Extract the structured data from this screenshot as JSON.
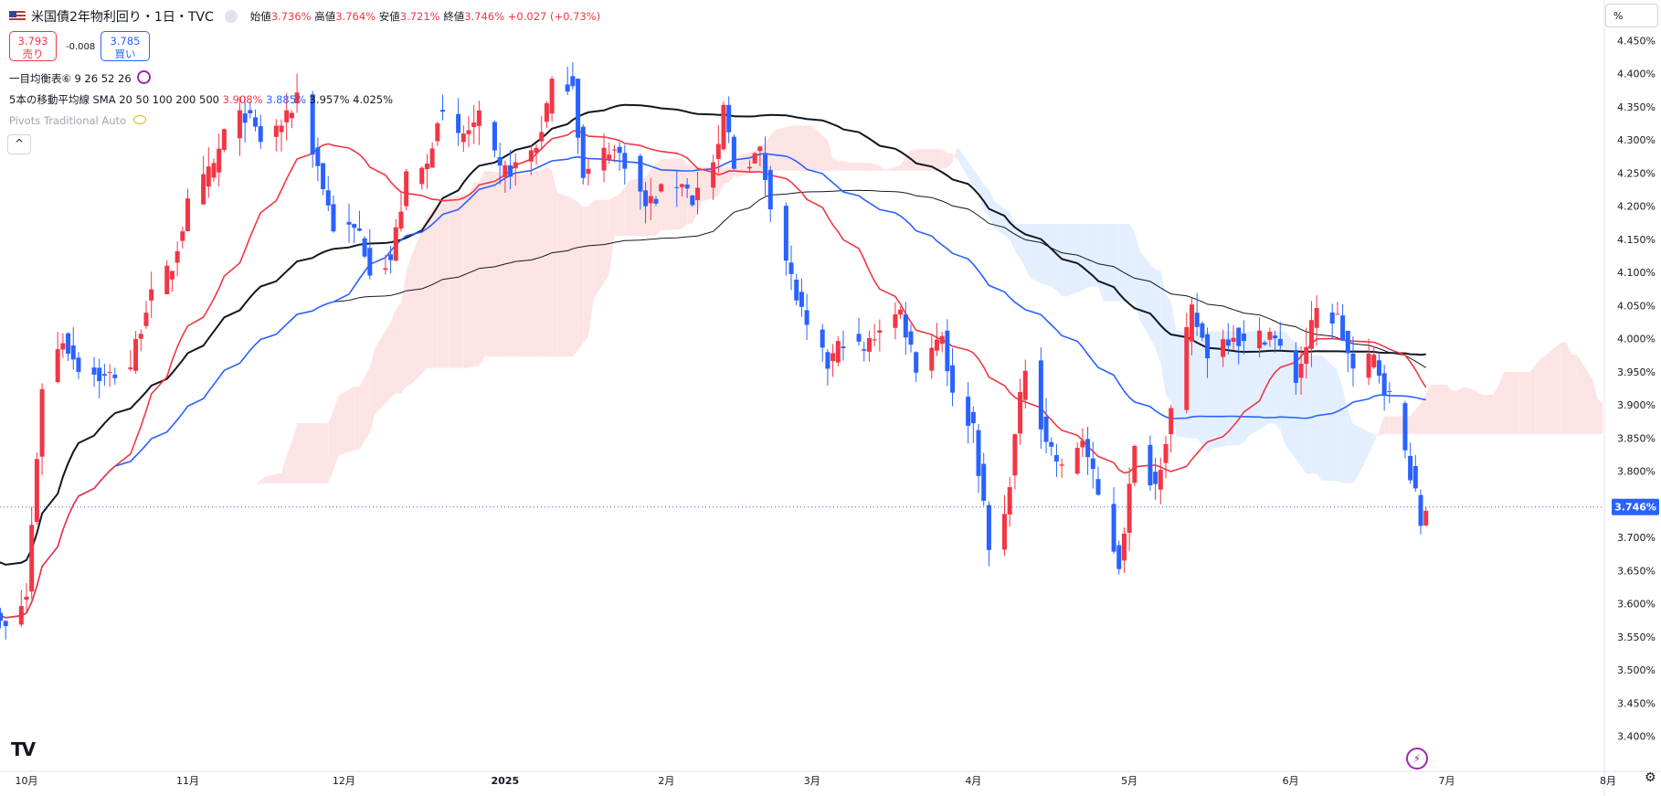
{
  "header": {
    "symbol": "米国債2年物利回り・1日・TVC",
    "open_label": "始値",
    "open_value": "3.736%",
    "high_label": "高値",
    "high_value": "3.764%",
    "low_label": "安値",
    "low_value": "3.721%",
    "close_label": "終値",
    "close_value": "3.746%",
    "change": "+0.027 (+0.73%)"
  },
  "trade": {
    "sell_price": "3.793",
    "sell_label": "売り",
    "spread": "-0.008",
    "buy_price": "3.785",
    "buy_label": "買い"
  },
  "legend": {
    "ichimoku": "一目均衡表⑥ 9 26 52 26",
    "sma_label": "5本の移動平均線 SMA 20 50 100 200 500",
    "sma_values": [
      "3.908%",
      "3.885%",
      "3.957%",
      "4.025%"
    ],
    "pivots": "Pivots Traditional Auto"
  },
  "scale_unit": "%",
  "current_price_label": "3.746%",
  "colors": {
    "up": "#f23645",
    "down": "#2962ff",
    "sma20": "#f23645",
    "sma50": "#2962ff",
    "sma100": "#131722",
    "sma200": "#131722",
    "cloud_up": "#fde4e4",
    "cloud_down": "#e3efff"
  },
  "chart_data": {
    "type": "candlestick",
    "y_unit": "%",
    "ylim": [
      3.38,
      4.47
    ],
    "y_ticks": [
      "4.450%",
      "4.400%",
      "4.350%",
      "4.300%",
      "4.250%",
      "4.200%",
      "4.150%",
      "4.100%",
      "4.050%",
      "4.000%",
      "3.950%",
      "3.900%",
      "3.850%",
      "3.800%",
      "3.750%",
      "3.700%",
      "3.650%",
      "3.600%",
      "3.550%",
      "3.500%",
      "3.450%",
      "3.400%"
    ],
    "x_labels": [
      {
        "label": "10月",
        "date": "2024-10-01"
      },
      {
        "label": "11月",
        "date": "2024-11-01"
      },
      {
        "label": "12月",
        "date": "2024-12-01"
      },
      {
        "label": "2025",
        "date": "2025-01-01"
      },
      {
        "label": "2月",
        "date": "2025-02-01"
      },
      {
        "label": "3月",
        "date": "2025-03-01"
      },
      {
        "label": "4月",
        "date": "2025-04-01"
      },
      {
        "label": "5月",
        "date": "2025-05-01"
      },
      {
        "label": "6月",
        "date": "2025-06-01"
      },
      {
        "label": "7月",
        "date": "2025-07-01"
      },
      {
        "label": "8月",
        "date": "2025-08-01"
      }
    ],
    "last_close": 3.746,
    "close_series": [
      [
        "2024-09-23",
        3.6
      ],
      [
        "2024-09-27",
        3.56
      ],
      [
        "2024-10-01",
        3.61
      ],
      [
        "2024-10-04",
        3.93
      ],
      [
        "2024-10-08",
        4.0
      ],
      [
        "2024-10-11",
        3.96
      ],
      [
        "2024-10-16",
        3.94
      ],
      [
        "2024-10-21",
        3.96
      ],
      [
        "2024-10-24",
        4.05
      ],
      [
        "2024-10-29",
        4.11
      ],
      [
        "2024-11-01",
        4.2
      ],
      [
        "2024-11-06",
        4.26
      ],
      [
        "2024-11-08",
        4.31
      ],
      [
        "2024-11-12",
        4.34
      ],
      [
        "2024-11-15",
        4.3
      ],
      [
        "2024-11-20",
        4.33
      ],
      [
        "2024-11-22",
        4.37
      ],
      [
        "2024-11-26",
        4.26
      ],
      [
        "2024-11-29",
        4.17
      ],
      [
        "2024-12-04",
        4.16
      ],
      [
        "2024-12-06",
        4.11
      ],
      [
        "2024-12-10",
        4.12
      ],
      [
        "2024-12-13",
        4.24
      ],
      [
        "2024-12-17",
        4.26
      ],
      [
        "2024-12-19",
        4.34
      ],
      [
        "2024-12-23",
        4.3
      ],
      [
        "2024-12-27",
        4.33
      ],
      [
        "2024-12-31",
        4.25
      ],
      [
        "2025-01-03",
        4.26
      ],
      [
        "2025-01-07",
        4.29
      ],
      [
        "2025-01-10",
        4.38
      ],
      [
        "2025-01-14",
        4.39
      ],
      [
        "2025-01-16",
        4.24
      ],
      [
        "2025-01-21",
        4.29
      ],
      [
        "2025-01-24",
        4.27
      ],
      [
        "2025-01-28",
        4.2
      ],
      [
        "2025-01-31",
        4.22
      ],
      [
        "2025-02-04",
        4.24
      ],
      [
        "2025-02-06",
        4.21
      ],
      [
        "2025-02-11",
        4.28
      ],
      [
        "2025-02-12",
        4.35
      ],
      [
        "2025-02-14",
        4.26
      ],
      [
        "2025-02-19",
        4.28
      ],
      [
        "2025-02-21",
        4.21
      ],
      [
        "2025-02-25",
        4.09
      ],
      [
        "2025-02-28",
        4.01
      ],
      [
        "2025-03-04",
        3.96
      ],
      [
        "2025-03-07",
        4.0
      ],
      [
        "2025-03-11",
        3.98
      ],
      [
        "2025-03-14",
        4.02
      ],
      [
        "2025-03-18",
        4.04
      ],
      [
        "2025-03-21",
        3.96
      ],
      [
        "2025-03-26",
        4.01
      ],
      [
        "2025-03-28",
        3.91
      ],
      [
        "2025-04-01",
        3.87
      ],
      [
        "2025-04-04",
        3.68
      ],
      [
        "2025-04-07",
        3.73
      ],
      [
        "2025-04-09",
        3.85
      ],
      [
        "2025-04-11",
        3.96
      ],
      [
        "2025-04-15",
        3.85
      ],
      [
        "2025-04-18",
        3.8
      ],
      [
        "2025-04-22",
        3.85
      ],
      [
        "2025-04-25",
        3.76
      ],
      [
        "2025-04-29",
        3.66
      ],
      [
        "2025-05-02",
        3.83
      ],
      [
        "2025-05-06",
        3.78
      ],
      [
        "2025-05-09",
        3.89
      ],
      [
        "2025-05-13",
        4.04
      ],
      [
        "2025-05-16",
        3.98
      ],
      [
        "2025-05-21",
        4.01
      ],
      [
        "2025-05-23",
        3.99
      ],
      [
        "2025-05-28",
        4.01
      ],
      [
        "2025-06-02",
        3.94
      ],
      [
        "2025-06-06",
        4.04
      ],
      [
        "2025-06-10",
        4.03
      ],
      [
        "2025-06-13",
        3.95
      ],
      [
        "2025-06-17",
        3.97
      ],
      [
        "2025-06-20",
        3.91
      ],
      [
        "2025-06-24",
        3.8
      ],
      [
        "2025-06-26",
        3.72
      ],
      [
        "2025-06-27",
        3.746
      ]
    ],
    "series": [
      {
        "name": "SMA 20",
        "value": "3.908%"
      },
      {
        "name": "SMA 50",
        "value": "3.885%"
      },
      {
        "name": "SMA 100",
        "value": "3.957%"
      },
      {
        "name": "SMA 200",
        "value": "4.025%"
      }
    ]
  }
}
